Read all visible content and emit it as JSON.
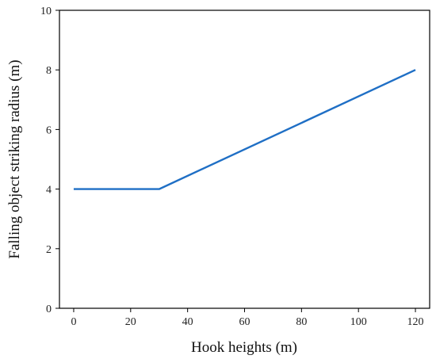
{
  "chart_data": {
    "type": "line",
    "title": "",
    "xlabel": "Hook heights (m)",
    "ylabel": "Falling object striking radius (m)",
    "xlim": [
      -5,
      125
    ],
    "ylim": [
      0,
      10
    ],
    "x_ticks": [
      0,
      20,
      40,
      60,
      80,
      100,
      120
    ],
    "y_ticks": [
      0,
      2,
      4,
      6,
      8,
      10
    ],
    "grid": false,
    "legend": "none",
    "series": [
      {
        "color": "#1f6fc5",
        "points": [
          {
            "x": 0,
            "y": 4
          },
          {
            "x": 30,
            "y": 4
          },
          {
            "x": 120,
            "y": 8
          }
        ]
      }
    ]
  }
}
